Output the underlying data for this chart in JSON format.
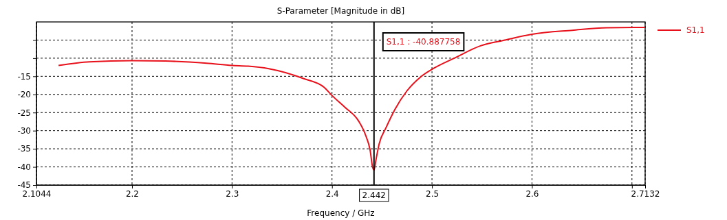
{
  "chart_data": {
    "type": "line",
    "title": "S-Parameter [Magnitude in dB]",
    "xlabel": "Frequency / GHz",
    "xlim": [
      2.1044,
      2.7132
    ],
    "xticks": [
      2.1044,
      2.2,
      2.3,
      2.4,
      2.5,
      2.6,
      {
        "value": 2.7,
        "label": null
      },
      2.7132
    ],
    "ylim": [
      -45,
      0
    ],
    "yticks": [
      -45,
      -40,
      -35,
      -30,
      -25,
      -20,
      -15,
      {
        "value": -10,
        "label": null
      },
      {
        "value": -5,
        "label": null
      }
    ],
    "grid": true,
    "legend": "top right",
    "line_style": "solid",
    "series": [
      {
        "name": "S1,1",
        "color": "#e8101a",
        "x": [
          2.1265,
          2.1575,
          2.2,
          2.2334,
          2.2747,
          2.3,
          2.3161,
          2.3368,
          2.3713,
          2.392,
          2.4,
          2.4127,
          2.4265,
          2.4334,
          2.4382,
          2.4405,
          2.442,
          2.444,
          2.4472,
          2.454,
          2.463,
          2.475,
          2.4885,
          2.5023,
          2.523,
          2.5485,
          2.5713,
          2.6,
          2.6403,
          2.6747,
          2.7132
        ],
        "values": [
          -12.0,
          -11.0,
          -10.7,
          -10.8,
          -11.4,
          -12.0,
          -12.2,
          -12.9,
          -15.6,
          -18.0,
          -20.3,
          -23.5,
          -27.3,
          -31.1,
          -35.5,
          -39.9,
          -40.887758,
          -38.0,
          -33.6,
          -29.2,
          -24.1,
          -19.0,
          -15.2,
          -12.7,
          -9.9,
          -6.6,
          -5.1,
          -3.4,
          -2.3,
          -1.6,
          -1.5
        ]
      }
    ],
    "ref_lines": [
      {
        "axis": "x",
        "value": 2.442,
        "label": "2.442",
        "color": "#000000"
      }
    ],
    "annotations": [
      "S1,1 : -40.887758"
    ]
  }
}
